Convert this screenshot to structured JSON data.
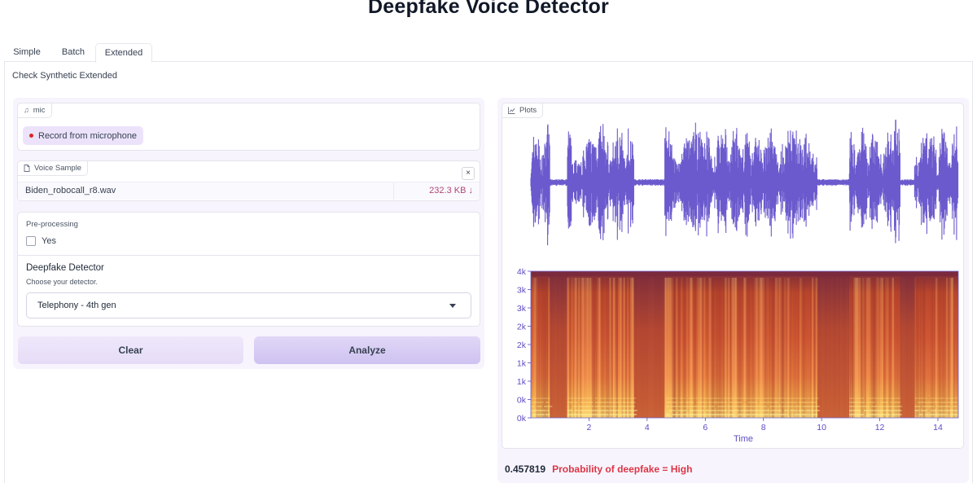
{
  "app": {
    "title": "Deepfake Voice Detector"
  },
  "tabs": [
    {
      "label": "Simple",
      "active": false
    },
    {
      "label": "Batch",
      "active": false
    },
    {
      "label": "Extended",
      "active": true
    }
  ],
  "panel": {
    "description": "Check Synthetic Extended"
  },
  "mic": {
    "label": "mic",
    "record_button": "Record from microphone",
    "icon": "music-note-icon"
  },
  "voice_sample": {
    "label": "Voice Sample",
    "icon": "file-icon",
    "close": "×",
    "file_name": "Biden_robocall_r8.wav",
    "file_size": "232.3 KB ↓"
  },
  "preprocessing": {
    "title": "Pre-processing",
    "checkbox_label": "Yes",
    "checked": false
  },
  "detector": {
    "title": "Deepfake Detector",
    "subtitle": "Choose your detector.",
    "selected": "Telephony - 4th gen"
  },
  "buttons": {
    "clear": "Clear",
    "analyze": "Analyze"
  },
  "plots": {
    "label": "Plots",
    "icon": "chart-icon"
  },
  "result": {
    "score": "0.457819",
    "text": "Probability of deepfake = High"
  },
  "colors": {
    "accent": "#6a5acd",
    "result": "#dc3545",
    "waveform": "#6a5acd"
  },
  "chart_data": {
    "type": "spectrogram",
    "title": "",
    "xlabel": "Time",
    "ylabel": "",
    "x_ticks": [
      "2",
      "4",
      "6",
      "8",
      "10",
      "12",
      "14"
    ],
    "y_ticks": [
      "0k",
      "0k",
      "1k",
      "1k",
      "2k",
      "2k",
      "3k",
      "3k",
      "4k"
    ],
    "xlim": [
      0,
      14.7
    ],
    "silences": [
      [
        0.65,
        1.25
      ],
      [
        3.55,
        4.6
      ],
      [
        9.85,
        10.95
      ],
      [
        12.7,
        13.2
      ]
    ]
  }
}
